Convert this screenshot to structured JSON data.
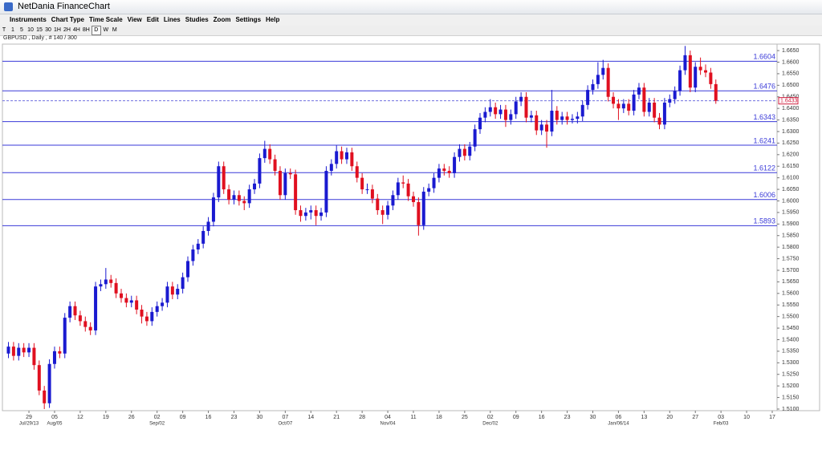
{
  "window": {
    "title": "NetDania FinanceChart"
  },
  "menu": [
    "Instruments",
    "Chart Type",
    "Time Scale",
    "View",
    "Edit",
    "Lines",
    "Studies",
    "Zoom",
    "Settings",
    "Help"
  ],
  "toolbar": [
    "T",
    "1",
    "5",
    "10",
    "15",
    "30",
    "1H",
    "2H",
    "4H",
    "8H",
    "D",
    "W",
    "M"
  ],
  "instrument_info": "GBPUSD , Daily , # 140 / 300",
  "chart_data": {
    "type": "candlestick",
    "up_color": "#1a1ad0",
    "down_color": "#e01020",
    "level_color": "#3a3ad8",
    "price_line_color": "#7070e0",
    "price_label_color": "#d02040",
    "ylim": [
      1.5093,
      1.6678
    ],
    "yticks": [
      {
        "value": 1.51,
        "label": "1.5100"
      },
      {
        "value": 1.515,
        "label": "1.5150"
      },
      {
        "value": 1.52,
        "label": "1.5200"
      },
      {
        "value": 1.525,
        "label": "1.5250"
      },
      {
        "value": 1.53,
        "label": "1.5300"
      },
      {
        "value": 1.535,
        "label": "1.5350"
      },
      {
        "value": 1.54,
        "label": "1.5400"
      },
      {
        "value": 1.545,
        "label": "1.5450"
      },
      {
        "value": 1.55,
        "label": "1.5500"
      },
      {
        "value": 1.555,
        "label": "1.5550"
      },
      {
        "value": 1.56,
        "label": "1.5600"
      },
      {
        "value": 1.565,
        "label": "1.5650"
      },
      {
        "value": 1.57,
        "label": "1.5700"
      },
      {
        "value": 1.575,
        "label": "1.5750"
      },
      {
        "value": 1.58,
        "label": "1.5800"
      },
      {
        "value": 1.585,
        "label": "1.5850"
      },
      {
        "value": 1.59,
        "label": "1.5900"
      },
      {
        "value": 1.595,
        "label": "1.5950"
      },
      {
        "value": 1.6,
        "label": "1.6000"
      },
      {
        "value": 1.605,
        "label": "1.6050"
      },
      {
        "value": 1.61,
        "label": "1.6100"
      },
      {
        "value": 1.615,
        "label": "1.6150"
      },
      {
        "value": 1.62,
        "label": "1.6200"
      },
      {
        "value": 1.625,
        "label": "1.6250"
      },
      {
        "value": 1.63,
        "label": "1.6300"
      },
      {
        "value": 1.635,
        "label": "1.6350"
      },
      {
        "value": 1.64,
        "label": "1.6400"
      },
      {
        "value": 1.645,
        "label": "1.6450"
      },
      {
        "value": 1.65,
        "label": "1.6500"
      },
      {
        "value": 1.655,
        "label": "1.6550"
      },
      {
        "value": 1.66,
        "label": "1.6600"
      },
      {
        "value": 1.665,
        "label": "1.6650"
      }
    ],
    "levels": [
      1.6604,
      1.6476,
      1.6343,
      1.6241,
      1.6122,
      1.6006,
      1.5893
    ],
    "current_price": 1.6433,
    "categories": [
      null,
      null,
      null,
      null,
      "29",
      null,
      null,
      null,
      null,
      "05",
      null,
      null,
      null,
      null,
      "12",
      null,
      null,
      null,
      null,
      "19",
      null,
      null,
      null,
      null,
      "26",
      null,
      null,
      null,
      null,
      "02",
      null,
      null,
      null,
      null,
      "09",
      null,
      null,
      null,
      null,
      "16",
      null,
      null,
      null,
      null,
      "23",
      null,
      null,
      null,
      null,
      "30",
      null,
      null,
      null,
      null,
      "07",
      null,
      null,
      null,
      null,
      "14",
      null,
      null,
      null,
      null,
      "21",
      null,
      null,
      null,
      null,
      "28",
      null,
      null,
      null,
      null,
      "04",
      null,
      null,
      null,
      null,
      "11",
      null,
      null,
      null,
      null,
      "18",
      null,
      null,
      null,
      null,
      "25",
      null,
      null,
      null,
      null,
      "02",
      null,
      null,
      null,
      null,
      "09",
      null,
      null,
      null,
      null,
      "16",
      null,
      null,
      null,
      null,
      "23",
      null,
      null,
      null,
      null,
      "30",
      null,
      null,
      null,
      null,
      "06",
      null,
      null,
      null,
      null,
      "13",
      null,
      null,
      null,
      null,
      "20",
      null,
      null,
      null,
      null,
      "27",
      null,
      null,
      null,
      null,
      "03",
      null,
      null,
      null,
      null,
      "10",
      null,
      null,
      null,
      null,
      "17"
    ],
    "category_sublabels": [
      null,
      null,
      null,
      null,
      "Jul/29/13",
      null,
      null,
      null,
      null,
      "Aug/05",
      null,
      null,
      null,
      null,
      null,
      null,
      null,
      null,
      null,
      null,
      null,
      null,
      null,
      null,
      null,
      null,
      null,
      null,
      null,
      "Sep/02",
      null,
      null,
      null,
      null,
      null,
      null,
      null,
      null,
      null,
      null,
      null,
      null,
      null,
      null,
      null,
      null,
      null,
      null,
      null,
      null,
      null,
      null,
      null,
      null,
      "Oct/07",
      null,
      null,
      null,
      null,
      null,
      null,
      null,
      null,
      null,
      null,
      null,
      null,
      null,
      null,
      null,
      null,
      null,
      null,
      null,
      "Nov/04",
      null,
      null,
      null,
      null,
      null,
      null,
      null,
      null,
      null,
      null,
      null,
      null,
      null,
      null,
      null,
      null,
      null,
      null,
      null,
      "Dec/02",
      null,
      null,
      null,
      null,
      null,
      null,
      null,
      null,
      null,
      null,
      null,
      null,
      null,
      null,
      null,
      null,
      null,
      null,
      null,
      null,
      null,
      null,
      null,
      null,
      "Jan/06/14",
      null,
      null,
      null,
      null,
      null,
      null,
      null,
      null,
      null,
      null,
      null,
      null,
      null,
      null,
      null,
      null,
      null,
      null,
      null,
      "Feb/03",
      null,
      null,
      null,
      null,
      null,
      null,
      null,
      null,
      null,
      null
    ],
    "candles": [
      [
        1.534,
        1.539,
        1.532,
        1.537
      ],
      [
        1.537,
        1.539,
        1.531,
        1.533
      ],
      [
        1.533,
        1.5385,
        1.531,
        1.5365
      ],
      [
        1.5365,
        1.5385,
        1.5325,
        1.5345
      ],
      [
        1.5345,
        1.5385,
        1.5325,
        1.5365
      ],
      [
        1.5365,
        1.5385,
        1.527,
        1.529
      ],
      [
        1.529,
        1.531,
        1.516,
        1.518
      ],
      [
        1.518,
        1.52,
        1.51,
        1.5125
      ],
      [
        1.5125,
        1.5315,
        1.5105,
        1.5295
      ],
      [
        1.5295,
        1.537,
        1.5275,
        1.535
      ],
      [
        1.535,
        1.537,
        1.532,
        1.534
      ],
      [
        1.534,
        1.5515,
        1.532,
        1.5495
      ],
      [
        1.5495,
        1.5565,
        1.5475,
        1.5545
      ],
      [
        1.5545,
        1.5565,
        1.5485,
        1.5505
      ],
      [
        1.5505,
        1.5525,
        1.546,
        1.548
      ],
      [
        1.548,
        1.55,
        1.5435,
        1.5455
      ],
      [
        1.5455,
        1.5475,
        1.542,
        1.544
      ],
      [
        1.544,
        1.565,
        1.542,
        1.563
      ],
      [
        1.563,
        1.566,
        1.561,
        1.564
      ],
      [
        1.564,
        1.571,
        1.562,
        1.566
      ],
      [
        1.566,
        1.568,
        1.5625,
        1.5645
      ],
      [
        1.5645,
        1.5665,
        1.558,
        1.56
      ],
      [
        1.56,
        1.562,
        1.556,
        1.558
      ],
      [
        1.558,
        1.56,
        1.554,
        1.556
      ],
      [
        1.556,
        1.559,
        1.554,
        1.557
      ],
      [
        1.557,
        1.559,
        1.551,
        1.553
      ],
      [
        1.553,
        1.555,
        1.547,
        1.55
      ],
      [
        1.55,
        1.552,
        1.546,
        1.548
      ],
      [
        1.548,
        1.554,
        1.546,
        1.552
      ],
      [
        1.552,
        1.5565,
        1.55,
        1.5545
      ],
      [
        1.5545,
        1.558,
        1.5525,
        1.556
      ],
      [
        1.556,
        1.565,
        1.554,
        1.563
      ],
      [
        1.563,
        1.565,
        1.5575,
        1.5595
      ],
      [
        1.5595,
        1.564,
        1.5575,
        1.562
      ],
      [
        1.562,
        1.569,
        1.56,
        1.567
      ],
      [
        1.567,
        1.576,
        1.565,
        1.574
      ],
      [
        1.574,
        1.581,
        1.572,
        1.579
      ],
      [
        1.579,
        1.5835,
        1.577,
        1.5815
      ],
      [
        1.5815,
        1.589,
        1.5795,
        1.587
      ],
      [
        1.587,
        1.593,
        1.585,
        1.591
      ],
      [
        1.591,
        1.6035,
        1.589,
        1.6015
      ],
      [
        1.6015,
        1.617,
        1.5995,
        1.615
      ],
      [
        1.615,
        1.617,
        1.603,
        1.605
      ],
      [
        1.605,
        1.607,
        1.5985,
        1.6005
      ],
      [
        1.6005,
        1.6045,
        1.5985,
        1.6025
      ],
      [
        1.6025,
        1.6045,
        1.598,
        1.6
      ],
      [
        1.6,
        1.602,
        1.596,
        1.599
      ],
      [
        1.599,
        1.607,
        1.597,
        1.605
      ],
      [
        1.605,
        1.6095,
        1.603,
        1.6075
      ],
      [
        1.6075,
        1.6205,
        1.6055,
        1.6185
      ],
      [
        1.6185,
        1.626,
        1.6165,
        1.6225
      ],
      [
        1.6225,
        1.6245,
        1.616,
        1.618
      ],
      [
        1.618,
        1.62,
        1.611,
        1.613
      ],
      [
        1.613,
        1.615,
        1.6005,
        1.6025
      ],
      [
        1.6025,
        1.614,
        1.6005,
        1.612
      ],
      [
        1.612,
        1.614,
        1.6095,
        1.6115
      ],
      [
        1.6115,
        1.6135,
        1.594,
        1.596
      ],
      [
        1.596,
        1.598,
        1.591,
        1.5935
      ],
      [
        1.5935,
        1.597,
        1.5915,
        1.595
      ],
      [
        1.595,
        1.598,
        1.592,
        1.596
      ],
      [
        1.596,
        1.598,
        1.5895,
        1.5935
      ],
      [
        1.5935,
        1.597,
        1.5915,
        1.595
      ],
      [
        1.595,
        1.615,
        1.593,
        1.613
      ],
      [
        1.613,
        1.618,
        1.611,
        1.616
      ],
      [
        1.616,
        1.624,
        1.614,
        1.6215
      ],
      [
        1.6215,
        1.6235,
        1.616,
        1.618
      ],
      [
        1.618,
        1.623,
        1.616,
        1.621
      ],
      [
        1.621,
        1.623,
        1.613,
        1.615
      ],
      [
        1.615,
        1.617,
        1.608,
        1.61
      ],
      [
        1.61,
        1.612,
        1.603,
        1.605
      ],
      [
        1.605,
        1.6075,
        1.603,
        1.605
      ],
      [
        1.605,
        1.607,
        1.599,
        1.601
      ],
      [
        1.601,
        1.603,
        1.594,
        1.596
      ],
      [
        1.596,
        1.598,
        1.59,
        1.594
      ],
      [
        1.594,
        1.6,
        1.592,
        1.598
      ],
      [
        1.598,
        1.6045,
        1.596,
        1.6025
      ],
      [
        1.6025,
        1.61,
        1.6005,
        1.608
      ],
      [
        1.608,
        1.611,
        1.6055,
        1.6075
      ],
      [
        1.6075,
        1.6095,
        1.6,
        1.602
      ],
      [
        1.602,
        1.604,
        1.5975,
        1.5995
      ],
      [
        1.5995,
        1.6015,
        1.585,
        1.5895
      ],
      [
        1.5895,
        1.606,
        1.5875,
        1.604
      ],
      [
        1.604,
        1.6075,
        1.602,
        1.6055
      ],
      [
        1.6055,
        1.612,
        1.6035,
        1.61
      ],
      [
        1.61,
        1.616,
        1.608,
        1.614
      ],
      [
        1.614,
        1.616,
        1.611,
        1.613
      ],
      [
        1.613,
        1.615,
        1.61,
        1.612
      ],
      [
        1.612,
        1.621,
        1.61,
        1.619
      ],
      [
        1.619,
        1.6245,
        1.617,
        1.6225
      ],
      [
        1.6225,
        1.6245,
        1.6175,
        1.6195
      ],
      [
        1.6195,
        1.6255,
        1.6175,
        1.6235
      ],
      [
        1.6235,
        1.633,
        1.6215,
        1.631
      ],
      [
        1.631,
        1.638,
        1.629,
        1.636
      ],
      [
        1.636,
        1.6405,
        1.634,
        1.6385
      ],
      [
        1.6385,
        1.644,
        1.6365,
        1.6405
      ],
      [
        1.6405,
        1.6425,
        1.6355,
        1.6375
      ],
      [
        1.6375,
        1.6415,
        1.6355,
        1.6395
      ],
      [
        1.6395,
        1.6415,
        1.632,
        1.635
      ],
      [
        1.635,
        1.6395,
        1.633,
        1.6375
      ],
      [
        1.6375,
        1.645,
        1.6355,
        1.643
      ],
      [
        1.643,
        1.647,
        1.641,
        1.645
      ],
      [
        1.645,
        1.647,
        1.634,
        1.636
      ],
      [
        1.636,
        1.639,
        1.634,
        1.637
      ],
      [
        1.637,
        1.639,
        1.6285,
        1.6305
      ],
      [
        1.6305,
        1.635,
        1.6285,
        1.633
      ],
      [
        1.633,
        1.635,
        1.623,
        1.63
      ],
      [
        1.63,
        1.648,
        1.628,
        1.639
      ],
      [
        1.639,
        1.641,
        1.633,
        1.635
      ],
      [
        1.635,
        1.6385,
        1.633,
        1.6365
      ],
      [
        1.6365,
        1.6385,
        1.633,
        1.635
      ],
      [
        1.635,
        1.6375,
        1.6335,
        1.6355
      ],
      [
        1.6355,
        1.6385,
        1.6335,
        1.6365
      ],
      [
        1.6365,
        1.6435,
        1.6345,
        1.6415
      ],
      [
        1.6415,
        1.65,
        1.6395,
        1.648
      ],
      [
        1.648,
        1.6525,
        1.646,
        1.6505
      ],
      [
        1.6505,
        1.66,
        1.6485,
        1.6545
      ],
      [
        1.6545,
        1.661,
        1.6525,
        1.6575
      ],
      [
        1.6575,
        1.6595,
        1.643,
        1.645
      ],
      [
        1.645,
        1.647,
        1.64,
        1.642
      ],
      [
        1.642,
        1.644,
        1.635,
        1.64
      ],
      [
        1.64,
        1.644,
        1.638,
        1.642
      ],
      [
        1.642,
        1.644,
        1.637,
        1.639
      ],
      [
        1.639,
        1.648,
        1.637,
        1.646
      ],
      [
        1.646,
        1.651,
        1.644,
        1.649
      ],
      [
        1.649,
        1.651,
        1.6365,
        1.6385
      ],
      [
        1.6385,
        1.6445,
        1.6365,
        1.6425
      ],
      [
        1.6425,
        1.6445,
        1.634,
        1.636
      ],
      [
        1.636,
        1.638,
        1.631,
        1.633
      ],
      [
        1.633,
        1.6445,
        1.631,
        1.6425
      ],
      [
        1.6425,
        1.646,
        1.6405,
        1.644
      ],
      [
        1.644,
        1.6495,
        1.642,
        1.6475
      ],
      [
        1.6475,
        1.6585,
        1.6455,
        1.6565
      ],
      [
        1.6565,
        1.667,
        1.6545,
        1.663
      ],
      [
        1.663,
        1.665,
        1.647,
        1.649
      ],
      [
        1.649,
        1.66,
        1.647,
        1.658
      ],
      [
        1.658,
        1.662,
        1.6545,
        1.6565
      ],
      [
        1.6565,
        1.659,
        1.6535,
        1.6555
      ],
      [
        1.6555,
        1.6575,
        1.6485,
        1.6505
      ],
      [
        1.6505,
        1.6525,
        1.642,
        1.6433
      ],
      null,
      null,
      null,
      null,
      null,
      null,
      null,
      null,
      null,
      null,
      null
    ]
  }
}
